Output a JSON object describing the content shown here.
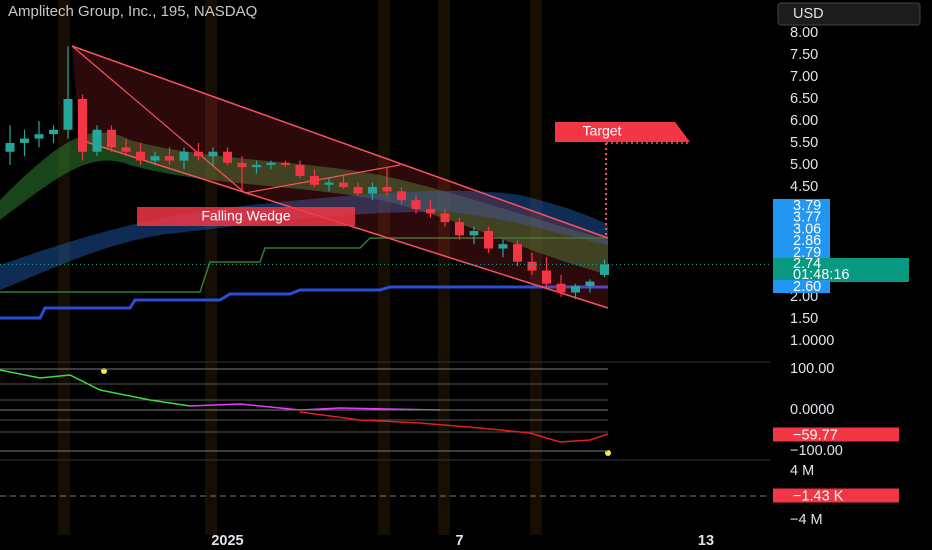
{
  "chart_data": [
    {
      "type": "candlestick",
      "title": "Amplitech Group, Inc., 195, NASDAQ",
      "currency": "USD",
      "annotations": [
        "Falling Wedge",
        "Target"
      ],
      "categories": [
        null,
        null,
        null,
        null,
        null,
        null,
        null,
        null,
        null,
        null,
        null,
        null,
        null,
        null,
        null,
        "2025",
        null,
        null,
        null,
        null,
        null,
        null,
        null,
        null,
        null,
        null,
        null,
        null,
        null,
        null,
        null,
        "7",
        null,
        null,
        null,
        null,
        null,
        null,
        null,
        null,
        null,
        null,
        null,
        null,
        null,
        null,
        null,
        null,
        "13"
      ],
      "open": [
        5.3,
        5.5,
        5.6,
        5.7,
        5.8,
        6.5,
        5.3,
        5.8,
        5.4,
        5.3,
        5.1,
        5.2,
        5.1,
        5.3,
        5.2,
        5.3,
        5.05,
        4.95,
        5.0,
        5.05,
        5.0,
        4.75,
        4.55,
        4.6,
        4.5,
        4.35,
        4.5,
        4.4,
        4.2,
        4.0,
        3.9,
        3.7,
        3.4,
        3.5,
        3.1,
        3.2,
        2.8,
        2.6,
        2.3,
        2.1,
        2.25,
        2.5,
        null,
        null,
        null,
        null,
        null,
        null,
        null
      ],
      "high": [
        5.9,
        5.8,
        6.0,
        5.9,
        7.7,
        6.6,
        5.9,
        5.9,
        5.6,
        5.5,
        5.3,
        5.4,
        5.4,
        5.5,
        5.4,
        5.4,
        5.2,
        5.1,
        5.1,
        5.1,
        5.1,
        4.9,
        4.7,
        4.75,
        4.6,
        4.6,
        4.95,
        4.5,
        4.3,
        4.2,
        4.0,
        3.8,
        3.6,
        3.6,
        3.3,
        3.3,
        3.0,
        2.9,
        2.5,
        2.3,
        2.4,
        2.85,
        null,
        null,
        null,
        null,
        null,
        null,
        null
      ],
      "low": [
        5.0,
        5.2,
        5.4,
        5.5,
        5.6,
        5.1,
        5.2,
        5.3,
        5.2,
        5.0,
        5.0,
        5.0,
        4.9,
        5.1,
        5.0,
        5.0,
        4.4,
        4.8,
        4.9,
        4.95,
        4.7,
        4.5,
        4.4,
        4.45,
        4.3,
        4.2,
        4.3,
        4.1,
        3.9,
        3.8,
        3.6,
        3.3,
        3.2,
        3.0,
        2.9,
        2.7,
        2.5,
        2.2,
        2.0,
        1.95,
        2.1,
        2.45,
        null,
        null,
        null,
        null,
        null,
        null,
        null
      ],
      "close": [
        5.5,
        5.6,
        5.7,
        5.8,
        6.5,
        5.3,
        5.8,
        5.4,
        5.3,
        5.1,
        5.2,
        5.1,
        5.3,
        5.2,
        5.3,
        5.05,
        4.95,
        5.0,
        5.05,
        5.0,
        4.75,
        4.55,
        4.6,
        4.5,
        4.35,
        4.5,
        4.4,
        4.2,
        4.0,
        3.9,
        3.7,
        3.4,
        3.5,
        3.1,
        3.2,
        2.8,
        2.6,
        2.3,
        2.1,
        2.25,
        2.35,
        2.74,
        null,
        null,
        null,
        null,
        null,
        null,
        null
      ],
      "up_color": "#26a69a",
      "down_color": "#f23645",
      "ylim": [
        0.68,
        8.75
      ],
      "yticks": [
        {
          "value": 8,
          "label": "8.00"
        },
        {
          "value": 7.5,
          "label": "7.50"
        },
        {
          "value": 7,
          "label": "7.00"
        },
        {
          "value": 6.5,
          "label": "6.50"
        },
        {
          "value": 6,
          "label": "6.00"
        },
        {
          "value": 5.5,
          "label": "5.50"
        },
        {
          "value": 5,
          "label": "5.00"
        },
        {
          "value": 4.5,
          "label": "4.50"
        },
        {
          "value": 2,
          "label": "2.00"
        },
        {
          "value": 1.5,
          "label": "1.50"
        },
        {
          "value": 1,
          "label": "1.0000"
        }
      ],
      "level_labels": [
        3.79,
        3.77,
        3.06,
        2.86,
        2.79
      ],
      "last_price": 2.74,
      "countdown": "01:48:16",
      "low_level": {
        "value": 2.6,
        "label": "2.60"
      }
    },
    {
      "type": "oscillator",
      "ylim": [
        -122,
        122
      ],
      "yticks": [
        {
          "value": 100,
          "label": "100.00"
        },
        {
          "value": 0,
          "label": "0.0000"
        },
        {
          "value": -100,
          "label": "−100.00"
        }
      ],
      "last_value": {
        "value": -59.77,
        "label": "−59.77"
      }
    },
    {
      "type": "volume-delta",
      "ylim": [
        -6450000,
        5800000
      ],
      "yticks": [
        {
          "value": 4000000,
          "label": "4 M"
        },
        {
          "value": -4000000,
          "label": "−4 M"
        }
      ],
      "last_value": {
        "value": -1430,
        "label": "−1.43 K"
      }
    }
  ]
}
